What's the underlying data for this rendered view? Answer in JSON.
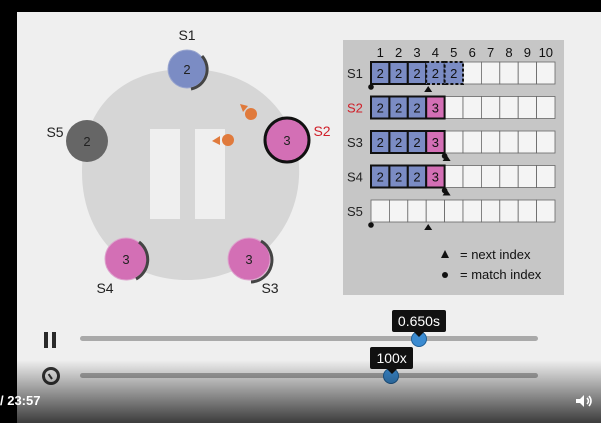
{
  "video": {
    "time_display": "/ 23:57",
    "time_tooltip": "0.650s",
    "time_fraction": 0.74,
    "speed_tooltip": "100x",
    "speed_fraction": 0.68
  },
  "servers": [
    {
      "id": "S1",
      "term": "2",
      "state": "follower",
      "color": "#7b8cc4"
    },
    {
      "id": "S2",
      "term": "3",
      "state": "leader",
      "color": "#d36fb5"
    },
    {
      "id": "S3",
      "term": "3",
      "state": "follower",
      "color": "#d36fb5"
    },
    {
      "id": "S4",
      "term": "3",
      "state": "follower",
      "color": "#d36fb5"
    },
    {
      "id": "S5",
      "term": "2",
      "state": "stopped",
      "color": "#666666"
    }
  ],
  "log_panel": {
    "index_headers": [
      "1",
      "2",
      "3",
      "4",
      "5",
      "6",
      "7",
      "8",
      "9",
      "10"
    ],
    "rows": [
      {
        "server": "S1",
        "label_color": "#222222",
        "entries": [
          "2",
          "2",
          "2",
          "2",
          "2"
        ],
        "entry_terms": [
          2,
          2,
          2,
          2,
          2
        ],
        "uncommitted_from": 4,
        "next_index": 4,
        "match_index": 0
      },
      {
        "server": "S2",
        "label_color": "#d0202a",
        "entries": [
          "2",
          "2",
          "2",
          "3"
        ],
        "entry_terms": [
          2,
          2,
          2,
          3
        ],
        "uncommitted_from": 0,
        "next_index": null,
        "match_index": null
      },
      {
        "server": "S3",
        "label_color": "#222222",
        "entries": [
          "2",
          "2",
          "2",
          "3"
        ],
        "entry_terms": [
          2,
          2,
          2,
          3
        ],
        "uncommitted_from": 0,
        "next_index": 5,
        "match_index": 4
      },
      {
        "server": "S4",
        "label_color": "#222222",
        "entries": [
          "2",
          "2",
          "2",
          "3"
        ],
        "entry_terms": [
          2,
          2,
          2,
          3
        ],
        "uncommitted_from": 0,
        "next_index": 5,
        "match_index": 4
      },
      {
        "server": "S5",
        "label_color": "#222222",
        "entries": [],
        "entry_terms": [],
        "uncommitted_from": 0,
        "next_index": 4,
        "match_index": 0
      }
    ],
    "legend_next": "= next index",
    "legend_match": "= match index"
  },
  "colors": {
    "term2": "#7b8cc4",
    "term3": "#d36fb5",
    "message": "#e07a3c",
    "ring": "#c9c9c9",
    "panel": "#c6c6c6"
  }
}
